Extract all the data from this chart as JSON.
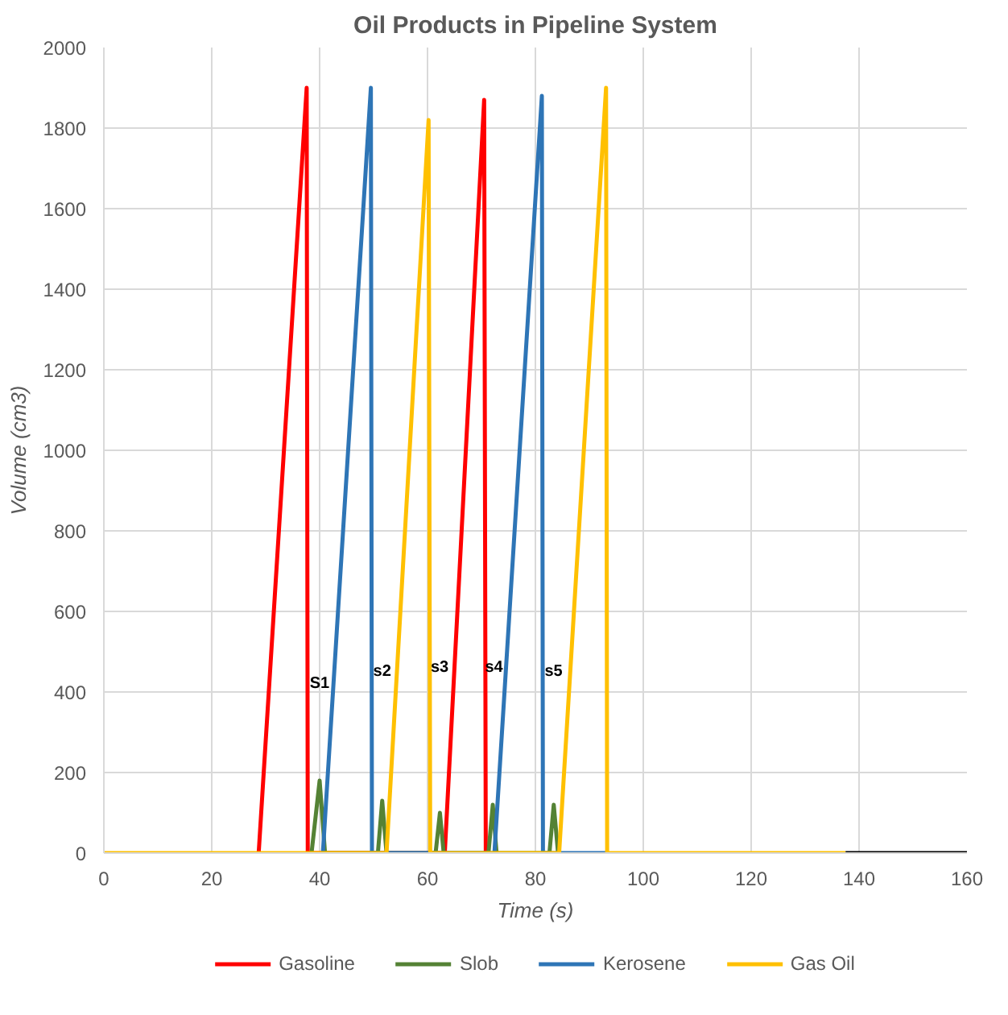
{
  "chart_data": {
    "type": "line",
    "title": "Oil Products in Pipeline System",
    "xlabel": "Time (s)",
    "ylabel": "Volume (cm3)",
    "series": [
      {
        "name": "Gasoline",
        "color": "#ff0000",
        "x": [
          28.7,
          37.6,
          37.8,
          63.2,
          70.5,
          70.8
        ],
        "values": [
          0,
          1900,
          0,
          0,
          1870,
          0
        ]
      },
      {
        "name": "Slob",
        "color": "#548235",
        "x": [
          38.5,
          40.0,
          41.0,
          50.8,
          51.6,
          52.4,
          61.5,
          62.3,
          63.0,
          71.3,
          72.1,
          72.8,
          82.6,
          83.4,
          84.2
        ],
        "values": [
          0,
          180,
          0,
          0,
          130,
          0,
          0,
          100,
          0,
          0,
          120,
          0,
          0,
          120,
          0
        ]
      },
      {
        "name": "Kerosene",
        "color": "#2e75b6",
        "x": [
          40.6,
          49.5,
          49.7,
          72.4,
          81.2,
          81.4,
          93.5
        ],
        "values": [
          0,
          1900,
          0,
          0,
          1880,
          0,
          0
        ]
      },
      {
        "name": "Gas Oil",
        "color": "#ffc000",
        "x": [
          0,
          52.4,
          60.2,
          60.5,
          84.4,
          93.1,
          93.3,
          137.5
        ],
        "values": [
          0,
          0,
          1820,
          0,
          0,
          1900,
          0,
          0
        ]
      },
      {
        "color": "#000000",
        "x": [
          137.5,
          160
        ],
        "values": [
          0,
          0
        ]
      }
    ],
    "annotations": [
      "S1",
      "s2",
      "s3",
      "s4",
      "s5"
    ],
    "xlim": [
      0,
      160
    ],
    "xticks": [
      0,
      20,
      40,
      60,
      80,
      100,
      120,
      140,
      160
    ],
    "ylim": [
      0,
      2000
    ],
    "yticks": [
      0,
      200,
      400,
      600,
      800,
      1000,
      1200,
      1400,
      1600,
      1800,
      2000
    ],
    "grid": true,
    "legend": "bottom",
    "marker": "none",
    "line_style": "solid"
  }
}
